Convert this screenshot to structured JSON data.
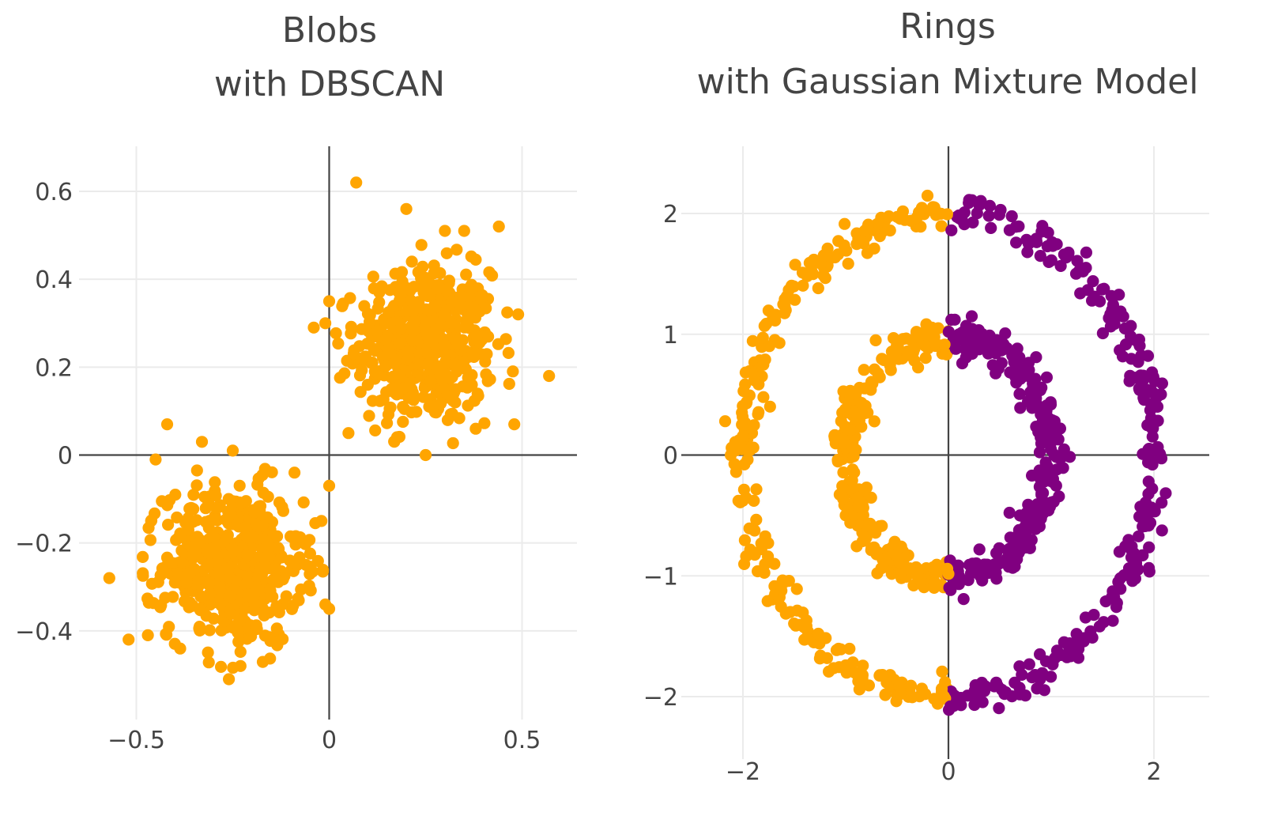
{
  "chart_data": [
    {
      "type": "scatter",
      "title_lines": [
        "Blobs",
        "with DBSCAN"
      ],
      "xlabel": "",
      "ylabel": "",
      "xlim": [
        -0.6,
        0.65
      ],
      "ylim": [
        -0.6,
        0.7
      ],
      "x_ticks": [
        -0.5,
        0,
        0.5
      ],
      "y_ticks": [
        0.6,
        0.4,
        0.2,
        0,
        -0.2,
        -0.4
      ],
      "x_tick_labels": [
        "−0.5",
        "0",
        "0.5"
      ],
      "y_tick_labels": [
        "0.6",
        "0.4",
        "0.2",
        "0",
        "−0.2",
        "−0.4"
      ],
      "grid": true,
      "colors": [
        "#ffa500"
      ],
      "clusters": [
        {
          "center": [
            0.25,
            0.25
          ],
          "spread": 0.09,
          "n": 500,
          "color": "#ffa500"
        },
        {
          "center": [
            -0.25,
            -0.25
          ],
          "spread": 0.09,
          "n": 500,
          "color": "#ffa500"
        }
      ],
      "series": [
        {
          "points": [
            [
              0.07,
              0.62
            ],
            [
              0.2,
              0.56
            ],
            [
              0.44,
              0.52
            ],
            [
              0.3,
              0.51
            ],
            [
              0.35,
              0.51
            ],
            [
              0.57,
              0.18
            ],
            [
              0.49,
              0.32
            ],
            [
              0.1,
              0.16
            ],
            [
              -0.01,
              0.3
            ],
            [
              -0.04,
              0.29
            ],
            [
              0.0,
              0.35
            ],
            [
              0.25,
              0.0
            ],
            [
              0.05,
              0.05
            ],
            [
              0.48,
              0.07
            ],
            [
              0.38,
              0.06
            ],
            [
              -0.42,
              0.07
            ],
            [
              -0.33,
              0.03
            ],
            [
              -0.25,
              0.01
            ],
            [
              -0.45,
              -0.01
            ],
            [
              -0.57,
              -0.28
            ],
            [
              -0.52,
              -0.42
            ],
            [
              -0.47,
              -0.41
            ],
            [
              -0.26,
              -0.51
            ],
            [
              -0.23,
              -0.48
            ],
            [
              -0.01,
              -0.34
            ],
            [
              0.0,
              -0.35
            ],
            [
              0.0,
              -0.07
            ],
            [
              -0.09,
              -0.04
            ],
            [
              -0.02,
              -0.15
            ],
            [
              -0.06,
              -0.25
            ]
          ]
        }
      ]
    },
    {
      "type": "scatter",
      "title_lines": [
        "Rings",
        "with Gaussian Mixture Model"
      ],
      "xlabel": "",
      "ylabel": "",
      "xlim": [
        -2.5,
        2.55
      ],
      "ylim": [
        -2.35,
        2.45
      ],
      "x_ticks": [
        -2,
        0,
        2
      ],
      "y_ticks": [
        2,
        1,
        0,
        -1,
        -2
      ],
      "x_tick_labels": [
        "−2",
        "0",
        "2"
      ],
      "y_tick_labels": [
        "2",
        "1",
        "0",
        "−1",
        "−2"
      ],
      "grid": true,
      "colors": [
        "#ffa500",
        "#800080"
      ],
      "rings": [
        {
          "radius": 2.0,
          "n": 500
        },
        {
          "radius": 1.0,
          "n": 500
        }
      ],
      "split_rule": "x < 0 orange, x >= 0 purple",
      "series": [
        {
          "name": "",
          "color": "#ffa500"
        },
        {
          "name": "",
          "color": "#800080"
        }
      ]
    }
  ]
}
